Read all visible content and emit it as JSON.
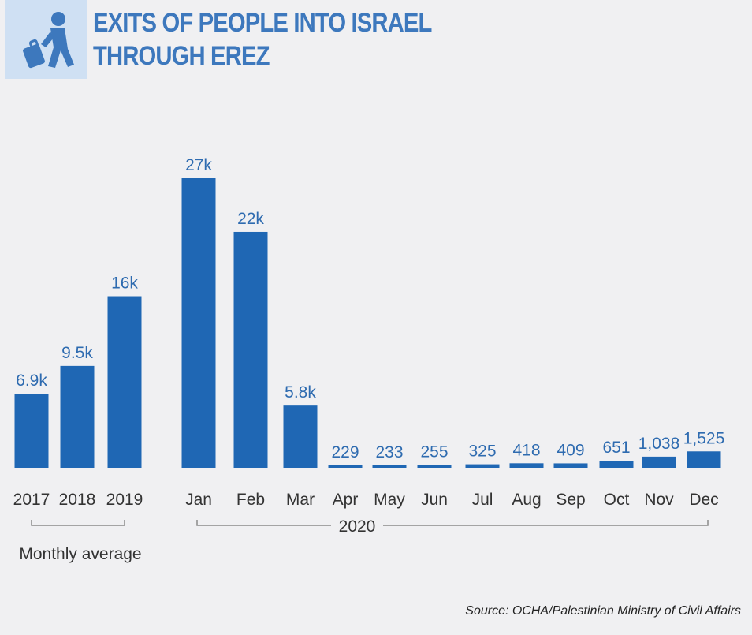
{
  "title": {
    "line1": "EXITS OF PEOPLE INTO ISRAEL",
    "line2": "THROUGH EREZ"
  },
  "icon": "traveler-with-luggage-icon",
  "colors": {
    "bar": "#1f67b4",
    "title": "#3d78bd",
    "icon_bg": "#cfe0f3",
    "background": "#f0f0f2"
  },
  "source": "Source: OCHA/Palestinian Ministry of Civil Affairs",
  "chart_data": {
    "type": "bar",
    "categories": [
      "2017",
      "2018",
      "2019",
      "Jan",
      "Feb",
      "Mar",
      "Apr",
      "May",
      "Jun",
      "Jul",
      "Aug",
      "Sep",
      "Oct",
      "Nov",
      "Dec"
    ],
    "values": [
      6900,
      9500,
      16000,
      27000,
      22000,
      5800,
      229,
      233,
      255,
      325,
      418,
      409,
      651,
      1038,
      1525
    ],
    "labels": [
      "6.9k",
      "9.5k",
      "16k",
      "27k",
      "22k",
      "5.8k",
      "229",
      "233",
      "255",
      "325",
      "418",
      "409",
      "651",
      "1,038",
      "1,525"
    ],
    "groups": [
      {
        "label": "Monthly average",
        "categories": [
          "2017",
          "2018",
          "2019"
        ]
      },
      {
        "label": "2020",
        "categories": [
          "Jan",
          "Feb",
          "Mar",
          "Apr",
          "May",
          "Jun",
          "Jul",
          "Aug",
          "Sep",
          "Oct",
          "Nov",
          "Dec"
        ]
      }
    ],
    "ylim": [
      0,
      27000
    ],
    "grid": false,
    "legend": false
  }
}
